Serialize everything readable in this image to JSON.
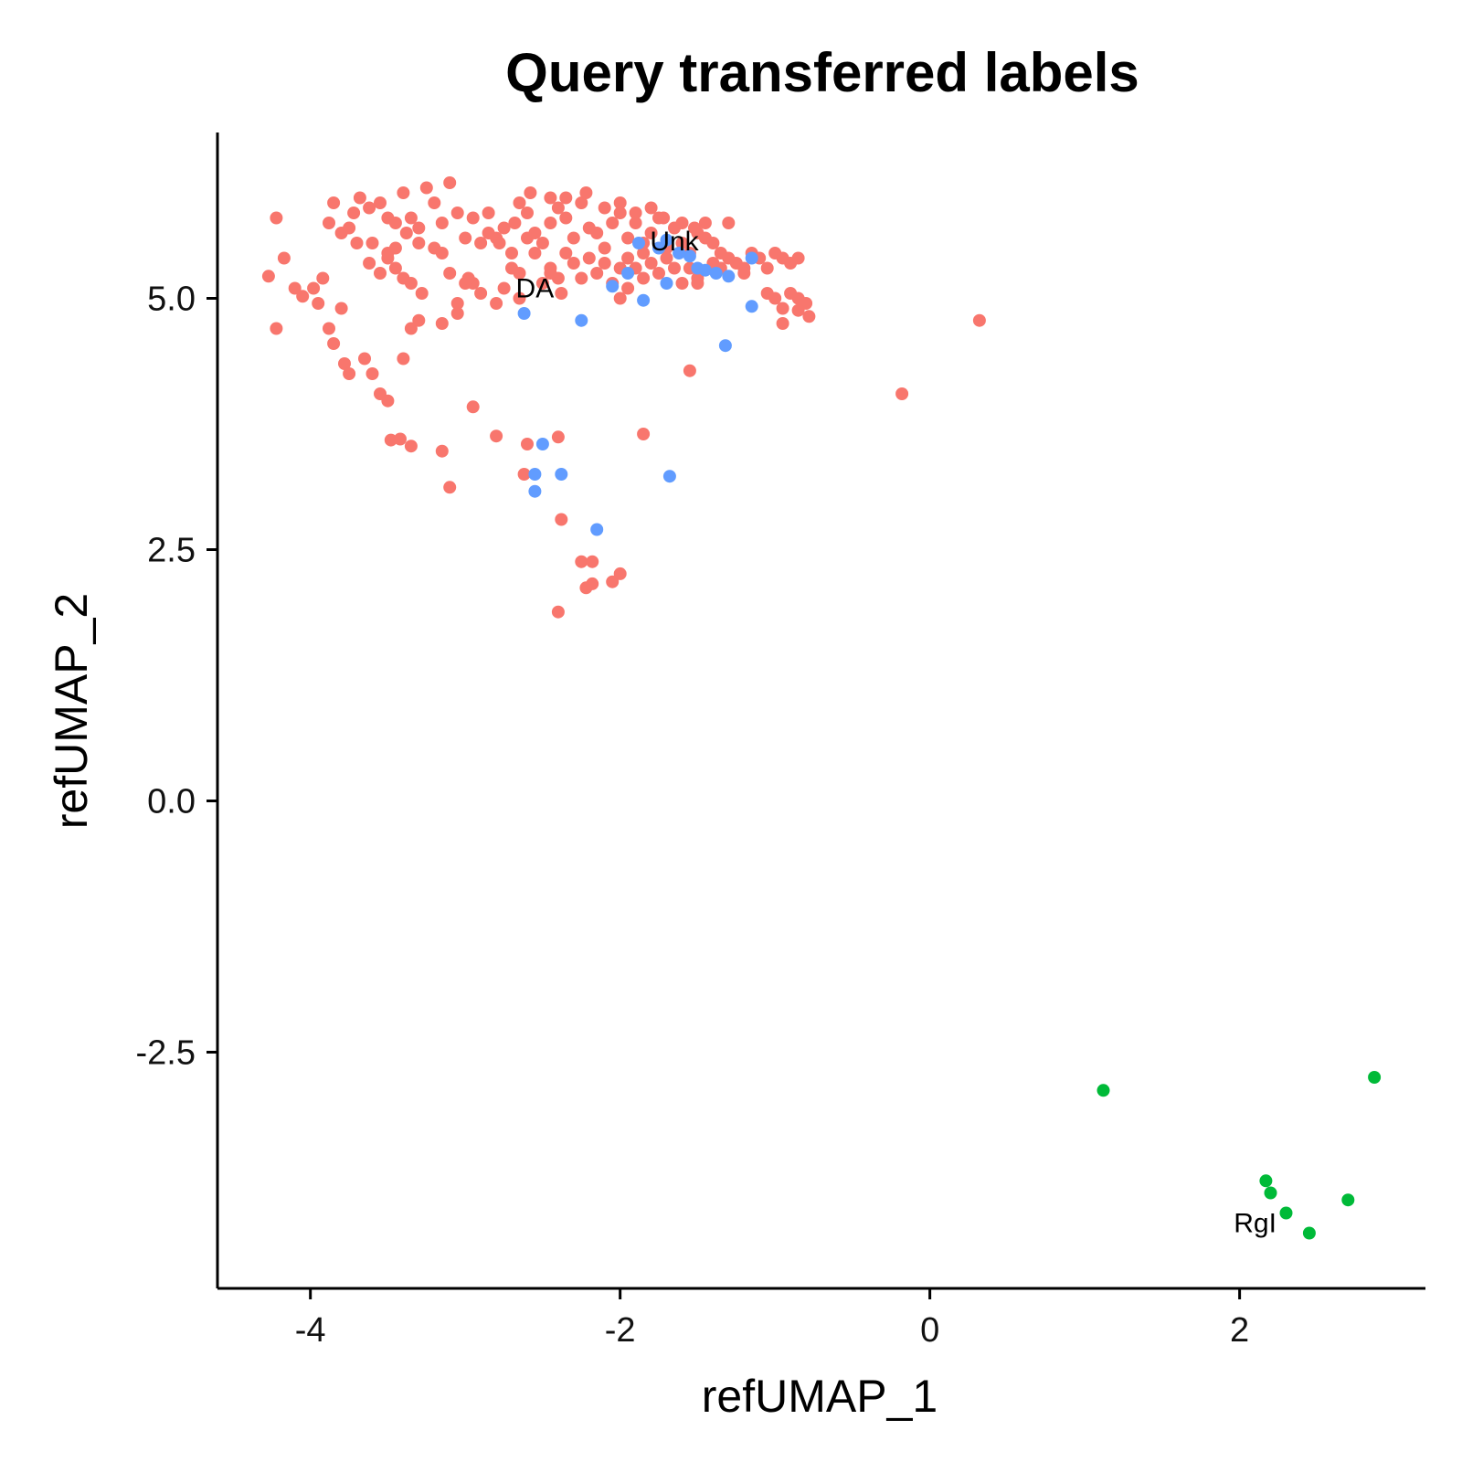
{
  "chart_data": {
    "type": "scatter",
    "title": "Query transferred labels",
    "xlabel": "refUMAP_1",
    "ylabel": "refUMAP_2",
    "xlim": [
      -4.6,
      3.2
    ],
    "ylim": [
      -4.85,
      6.65
    ],
    "xticks": [
      -4,
      -2,
      0,
      2
    ],
    "xtick_labels": [
      "-4",
      "-2",
      "0",
      "2"
    ],
    "yticks": [
      -2.5,
      0.0,
      2.5,
      5.0
    ],
    "ytick_labels": [
      "-2.5",
      "0.0",
      "2.5",
      "5.0"
    ],
    "grid": false,
    "legend": "none",
    "series": [
      {
        "color": "#F8766D",
        "points": [
          [
            -4.22,
            5.8
          ],
          [
            -4.17,
            5.4
          ],
          [
            -4.27,
            5.22
          ],
          [
            -4.22,
            4.7
          ],
          [
            -4.1,
            5.1
          ],
          [
            -4.05,
            5.02
          ],
          [
            -3.98,
            5.1
          ],
          [
            -3.95,
            4.95
          ],
          [
            -3.92,
            5.2
          ],
          [
            -3.88,
            5.75
          ],
          [
            -3.85,
            5.95
          ],
          [
            -3.8,
            5.65
          ],
          [
            -3.75,
            5.7
          ],
          [
            -3.72,
            5.85
          ],
          [
            -3.68,
            6.0
          ],
          [
            -3.62,
            5.9
          ],
          [
            -3.55,
            5.95
          ],
          [
            -3.5,
            5.8
          ],
          [
            -3.45,
            5.75
          ],
          [
            -3.4,
            6.05
          ],
          [
            -3.35,
            5.8
          ],
          [
            -3.3,
            5.7
          ],
          [
            -3.25,
            6.1
          ],
          [
            -3.2,
            5.95
          ],
          [
            -3.15,
            5.75
          ],
          [
            -3.1,
            6.15
          ],
          [
            -3.05,
            5.85
          ],
          [
            -3.0,
            5.6
          ],
          [
            -2.95,
            5.8
          ],
          [
            -2.9,
            5.55
          ],
          [
            -3.62,
            5.35
          ],
          [
            -3.55,
            5.25
          ],
          [
            -3.5,
            5.4
          ],
          [
            -3.45,
            5.3
          ],
          [
            -3.4,
            5.2
          ],
          [
            -3.35,
            5.15
          ],
          [
            -3.28,
            5.05
          ],
          [
            -3.2,
            5.5
          ],
          [
            -3.15,
            5.45
          ],
          [
            -3.1,
            5.25
          ],
          [
            -3.05,
            4.85
          ],
          [
            -3.0,
            5.15
          ],
          [
            -2.95,
            5.15
          ],
          [
            -2.9,
            5.05
          ],
          [
            -2.8,
            4.95
          ],
          [
            -3.8,
            4.9
          ],
          [
            -3.88,
            4.7
          ],
          [
            -3.85,
            4.55
          ],
          [
            -3.78,
            4.35
          ],
          [
            -3.75,
            4.25
          ],
          [
            -3.65,
            4.4
          ],
          [
            -3.6,
            4.25
          ],
          [
            -3.55,
            4.05
          ],
          [
            -3.5,
            3.98
          ],
          [
            -3.4,
            4.4
          ],
          [
            -3.35,
            4.7
          ],
          [
            -3.3,
            4.78
          ],
          [
            -3.15,
            4.75
          ],
          [
            -3.05,
            4.95
          ],
          [
            -2.98,
            5.2
          ],
          [
            -3.7,
            5.55
          ],
          [
            -3.6,
            5.55
          ],
          [
            -3.5,
            5.45
          ],
          [
            -3.45,
            5.5
          ],
          [
            -3.38,
            5.65
          ],
          [
            -3.3,
            5.55
          ],
          [
            -2.85,
            5.85
          ],
          [
            -2.8,
            5.6
          ],
          [
            -2.75,
            5.7
          ],
          [
            -2.7,
            5.3
          ],
          [
            -2.68,
            5.75
          ],
          [
            -2.65,
            5.95
          ],
          [
            -2.6,
            5.85
          ],
          [
            -2.55,
            5.65
          ],
          [
            -2.5,
            5.55
          ],
          [
            -2.45,
            5.75
          ],
          [
            -2.4,
            5.9
          ],
          [
            -2.35,
            5.8
          ],
          [
            -2.3,
            5.6
          ],
          [
            -2.25,
            5.95
          ],
          [
            -2.2,
            5.7
          ],
          [
            -2.15,
            5.65
          ],
          [
            -2.1,
            5.5
          ],
          [
            -2.05,
            5.75
          ],
          [
            -2.0,
            5.85
          ],
          [
            -1.95,
            5.6
          ],
          [
            -1.9,
            5.75
          ],
          [
            -1.85,
            5.55
          ],
          [
            -1.8,
            5.65
          ],
          [
            -1.75,
            5.8
          ],
          [
            -1.7,
            5.5
          ],
          [
            -1.65,
            5.7
          ],
          [
            -1.6,
            5.55
          ],
          [
            -1.55,
            5.45
          ],
          [
            -1.5,
            5.65
          ],
          [
            -1.45,
            5.6
          ],
          [
            -1.4,
            5.55
          ],
          [
            -1.35,
            5.45
          ],
          [
            -1.3,
            5.75
          ],
          [
            -1.25,
            5.35
          ],
          [
            -1.2,
            5.3
          ],
          [
            -1.15,
            5.45
          ],
          [
            -1.1,
            5.4
          ],
          [
            -1.05,
            5.3
          ],
          [
            -1.0,
            5.45
          ],
          [
            -0.95,
            5.4
          ],
          [
            -0.9,
            5.35
          ],
          [
            -0.85,
            5.4
          ],
          [
            -2.7,
            5.45
          ],
          [
            -2.65,
            5.25
          ],
          [
            -2.55,
            5.45
          ],
          [
            -2.45,
            5.3
          ],
          [
            -2.4,
            5.2
          ],
          [
            -2.35,
            5.45
          ],
          [
            -2.3,
            5.35
          ],
          [
            -2.2,
            5.4
          ],
          [
            -2.15,
            5.25
          ],
          [
            -2.1,
            5.35
          ],
          [
            -2.0,
            5.3
          ],
          [
            -1.95,
            5.4
          ],
          [
            -1.9,
            5.3
          ],
          [
            -1.85,
            5.45
          ],
          [
            -1.8,
            5.35
          ],
          [
            -1.75,
            5.25
          ],
          [
            -1.7,
            5.4
          ],
          [
            -1.65,
            5.3
          ],
          [
            -1.55,
            5.3
          ],
          [
            -1.5,
            5.2
          ],
          [
            -1.4,
            5.35
          ],
          [
            -1.35,
            5.3
          ],
          [
            -1.3,
            5.4
          ],
          [
            -1.2,
            5.25
          ],
          [
            -2.75,
            5.1
          ],
          [
            -2.65,
            5.0
          ],
          [
            -2.5,
            5.15
          ],
          [
            -2.45,
            5.25
          ],
          [
            -2.38,
            5.05
          ],
          [
            -2.25,
            5.2
          ],
          [
            -2.05,
            5.15
          ],
          [
            -2.0,
            5.0
          ],
          [
            -1.95,
            5.1
          ],
          [
            -1.85,
            5.2
          ],
          [
            -1.6,
            5.15
          ],
          [
            -1.5,
            5.15
          ],
          [
            -1.05,
            5.05
          ],
          [
            -1.0,
            5.0
          ],
          [
            -0.95,
            4.9
          ],
          [
            -0.9,
            5.05
          ],
          [
            -0.85,
            5.0
          ],
          [
            -0.8,
            4.95
          ],
          [
            -0.85,
            4.88
          ],
          [
            -0.95,
            4.75
          ],
          [
            -0.78,
            4.82
          ],
          [
            -2.58,
            6.05
          ],
          [
            -2.45,
            6.0
          ],
          [
            -2.35,
            6.0
          ],
          [
            -2.22,
            6.05
          ],
          [
            -2.1,
            5.9
          ],
          [
            -2.0,
            5.95
          ],
          [
            -1.9,
            5.85
          ],
          [
            -1.8,
            5.9
          ],
          [
            -1.72,
            5.8
          ],
          [
            -1.6,
            5.75
          ],
          [
            -1.52,
            5.7
          ],
          [
            -1.45,
            5.75
          ],
          [
            -2.85,
            5.65
          ],
          [
            -2.78,
            5.55
          ],
          [
            -2.6,
            5.6
          ],
          [
            0.32,
            4.78
          ],
          [
            -0.18,
            4.05
          ],
          [
            -1.55,
            4.28
          ],
          [
            -1.85,
            3.65
          ],
          [
            -2.4,
            3.62
          ],
          [
            -2.6,
            3.55
          ],
          [
            -2.8,
            3.63
          ],
          [
            -2.95,
            3.92
          ],
          [
            -3.1,
            3.12
          ],
          [
            -3.15,
            3.48
          ],
          [
            -3.35,
            3.53
          ],
          [
            -3.42,
            3.6
          ],
          [
            -3.48,
            3.59
          ],
          [
            -2.62,
            3.25
          ],
          [
            -2.38,
            2.8
          ],
          [
            -2.25,
            2.38
          ],
          [
            -2.18,
            2.38
          ],
          [
            -2.22,
            2.12
          ],
          [
            -2.18,
            2.16
          ],
          [
            -2.05,
            2.18
          ],
          [
            -2.0,
            2.26
          ],
          [
            -2.4,
            1.88
          ]
        ]
      },
      {
        "color": "#619CFF",
        "points": [
          [
            -1.88,
            5.55
          ],
          [
            -1.75,
            5.5
          ],
          [
            -1.7,
            5.58
          ],
          [
            -1.62,
            5.45
          ],
          [
            -1.55,
            5.42
          ],
          [
            -1.5,
            5.3
          ],
          [
            -1.45,
            5.28
          ],
          [
            -1.38,
            5.25
          ],
          [
            -1.3,
            5.22
          ],
          [
            -1.15,
            5.4
          ],
          [
            -1.95,
            5.25
          ],
          [
            -2.05,
            5.12
          ],
          [
            -1.7,
            5.15
          ],
          [
            -1.85,
            4.98
          ],
          [
            -1.15,
            4.92
          ],
          [
            -2.62,
            4.85
          ],
          [
            -2.25,
            4.78
          ],
          [
            -1.32,
            4.53
          ],
          [
            -2.5,
            3.55
          ],
          [
            -2.55,
            3.25
          ],
          [
            -2.55,
            3.08
          ],
          [
            -2.38,
            3.25
          ],
          [
            -1.68,
            3.23
          ],
          [
            -2.15,
            2.7
          ]
        ]
      },
      {
        "color": "#00BA38",
        "points": [
          [
            1.12,
            -2.88
          ],
          [
            2.87,
            -2.75
          ],
          [
            2.17,
            -3.78
          ],
          [
            2.2,
            -3.9
          ],
          [
            2.7,
            -3.97
          ],
          [
            2.3,
            -4.1
          ],
          [
            2.45,
            -4.3
          ]
        ]
      }
    ],
    "annotations": [
      {
        "text": "Unk",
        "x": -1.65,
        "y": 5.55
      },
      {
        "text": "DA",
        "x": -2.55,
        "y": 5.08
      },
      {
        "text": "RgI",
        "x": 2.1,
        "y": -4.22
      }
    ]
  }
}
